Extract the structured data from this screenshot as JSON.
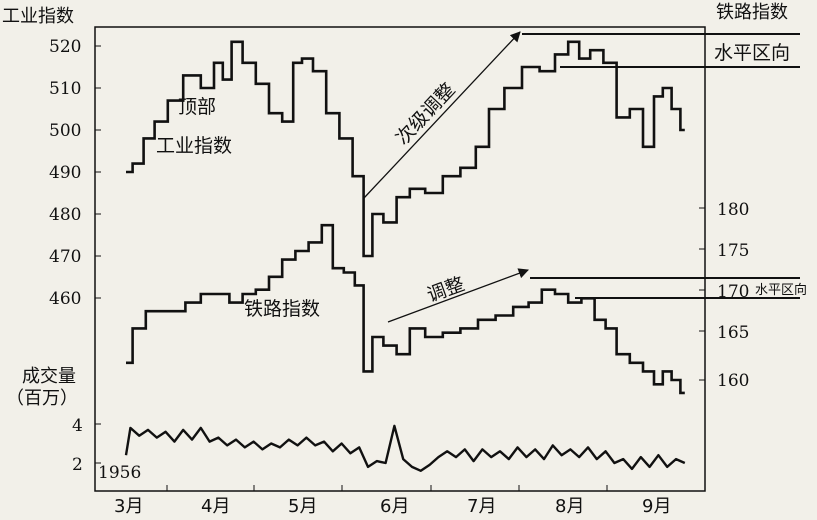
{
  "chart_data": {
    "type": "line",
    "left_axis_title": "工业指数",
    "right_axis_title": "铁路指数",
    "volume_title_line1": "成交量",
    "volume_title_line2": "（百万）",
    "year_label": "1956",
    "x_ticks": [
      "3月",
      "4月",
      "5月",
      "6月",
      "7月",
      "8月",
      "9月"
    ],
    "left_ticks": [
      "520",
      "510",
      "500",
      "490",
      "480",
      "470",
      "460"
    ],
    "right_ticks": [
      "180",
      "175",
      "170",
      "165",
      "160"
    ],
    "volume_ticks": [
      "4",
      "2"
    ],
    "left_ylim": [
      460,
      520
    ],
    "right_ylim": [
      160,
      180
    ],
    "volume_ylim": [
      2,
      4
    ],
    "annotations": {
      "top": "顶部",
      "industrial_label": "工业指数",
      "rail_label": "铁路指数",
      "secondary": "次级调整",
      "correction": "调整",
      "horizontal_upper": "水平区向",
      "horizontal_lower": "水平区向"
    },
    "series": [
      {
        "name": "工业指数",
        "axis": "left",
        "x": [
          "3月",
          "4月",
          "5月",
          "6月",
          "7月",
          "8月",
          "9月"
        ],
        "values": [
          [
            0.0,
            490
          ],
          [
            0.15,
            492
          ],
          [
            0.25,
            498
          ],
          [
            0.4,
            502
          ],
          [
            0.55,
            507
          ],
          [
            0.75,
            513
          ],
          [
            0.95,
            510
          ],
          [
            1.05,
            516
          ],
          [
            1.15,
            512
          ],
          [
            1.25,
            521
          ],
          [
            1.4,
            516
          ],
          [
            1.55,
            511
          ],
          [
            1.7,
            504
          ],
          [
            1.85,
            502
          ],
          [
            1.95,
            516
          ],
          [
            2.05,
            517
          ],
          [
            2.2,
            514
          ],
          [
            2.35,
            504
          ],
          [
            2.5,
            498
          ],
          [
            2.65,
            489
          ],
          [
            2.75,
            470
          ],
          [
            2.85,
            480
          ],
          [
            3.0,
            478
          ],
          [
            3.15,
            484
          ],
          [
            3.3,
            486
          ],
          [
            3.5,
            485
          ],
          [
            3.7,
            489
          ],
          [
            3.9,
            491
          ],
          [
            4.05,
            496
          ],
          [
            4.2,
            505
          ],
          [
            4.4,
            510
          ],
          [
            4.6,
            515
          ],
          [
            4.8,
            514
          ],
          [
            4.95,
            518
          ],
          [
            5.1,
            521
          ],
          [
            5.2,
            517
          ],
          [
            5.35,
            519
          ],
          [
            5.5,
            516
          ],
          [
            5.65,
            503
          ],
          [
            5.8,
            505
          ],
          [
            5.95,
            496
          ],
          [
            6.05,
            508
          ],
          [
            6.15,
            510
          ],
          [
            6.25,
            505
          ],
          [
            6.35,
            500
          ]
        ]
      },
      {
        "name": "铁路指数",
        "axis": "right",
        "x": [
          "3月",
          "4月",
          "5月",
          "6月",
          "7月",
          "8月",
          "9月"
        ],
        "values": [
          [
            0.0,
            162
          ],
          [
            0.15,
            166
          ],
          [
            0.3,
            168
          ],
          [
            0.45,
            168
          ],
          [
            0.6,
            168
          ],
          [
            0.75,
            169
          ],
          [
            0.95,
            170
          ],
          [
            1.1,
            170
          ],
          [
            1.25,
            169
          ],
          [
            1.4,
            170
          ],
          [
            1.55,
            170.5
          ],
          [
            1.7,
            172
          ],
          [
            1.85,
            174
          ],
          [
            2.0,
            175
          ],
          [
            2.15,
            176
          ],
          [
            2.3,
            178
          ],
          [
            2.4,
            173
          ],
          [
            2.55,
            172.5
          ],
          [
            2.65,
            171
          ],
          [
            2.75,
            161
          ],
          [
            2.85,
            165
          ],
          [
            3.0,
            164
          ],
          [
            3.15,
            163
          ],
          [
            3.3,
            166
          ],
          [
            3.5,
            165
          ],
          [
            3.7,
            165.5
          ],
          [
            3.9,
            166
          ],
          [
            4.1,
            167
          ],
          [
            4.3,
            167.5
          ],
          [
            4.5,
            168.5
          ],
          [
            4.65,
            169
          ],
          [
            4.8,
            170.5
          ],
          [
            4.95,
            170
          ],
          [
            5.1,
            169
          ],
          [
            5.25,
            169.5
          ],
          [
            5.4,
            167
          ],
          [
            5.5,
            166
          ],
          [
            5.65,
            163
          ],
          [
            5.8,
            162
          ],
          [
            5.95,
            161
          ],
          [
            6.05,
            159.5
          ],
          [
            6.15,
            161
          ],
          [
            6.25,
            160
          ],
          [
            6.35,
            158.5
          ]
        ]
      },
      {
        "name": "成交量",
        "axis": "volume",
        "x": [
          "3月",
          "4月",
          "5月",
          "6月",
          "7月",
          "8月",
          "9月"
        ],
        "values": [
          [
            0.0,
            2.4
          ],
          [
            0.05,
            3.8
          ],
          [
            0.15,
            3.4
          ],
          [
            0.25,
            3.7
          ],
          [
            0.35,
            3.3
          ],
          [
            0.45,
            3.6
          ],
          [
            0.55,
            3.1
          ],
          [
            0.65,
            3.7
          ],
          [
            0.75,
            3.2
          ],
          [
            0.85,
            3.8
          ],
          [
            0.95,
            3.1
          ],
          [
            1.05,
            3.3
          ],
          [
            1.15,
            2.9
          ],
          [
            1.25,
            3.2
          ],
          [
            1.35,
            2.8
          ],
          [
            1.45,
            3.1
          ],
          [
            1.55,
            2.7
          ],
          [
            1.65,
            3.0
          ],
          [
            1.75,
            2.8
          ],
          [
            1.85,
            3.2
          ],
          [
            1.95,
            2.9
          ],
          [
            2.05,
            3.3
          ],
          [
            2.15,
            2.9
          ],
          [
            2.25,
            3.1
          ],
          [
            2.35,
            2.6
          ],
          [
            2.45,
            3.0
          ],
          [
            2.55,
            2.5
          ],
          [
            2.65,
            2.8
          ],
          [
            2.75,
            1.8
          ],
          [
            2.85,
            2.1
          ],
          [
            2.95,
            2.0
          ],
          [
            3.05,
            3.9
          ],
          [
            3.15,
            2.2
          ],
          [
            3.25,
            1.8
          ],
          [
            3.35,
            1.6
          ],
          [
            3.45,
            1.9
          ],
          [
            3.55,
            2.3
          ],
          [
            3.65,
            2.6
          ],
          [
            3.75,
            2.3
          ],
          [
            3.85,
            2.7
          ],
          [
            3.95,
            2.1
          ],
          [
            4.05,
            2.7
          ],
          [
            4.15,
            2.3
          ],
          [
            4.25,
            2.6
          ],
          [
            4.35,
            2.2
          ],
          [
            4.45,
            2.8
          ],
          [
            4.55,
            2.3
          ],
          [
            4.65,
            2.7
          ],
          [
            4.75,
            2.2
          ],
          [
            4.85,
            2.9
          ],
          [
            4.95,
            2.4
          ],
          [
            5.05,
            2.7
          ],
          [
            5.15,
            2.3
          ],
          [
            5.25,
            2.8
          ],
          [
            5.35,
            2.2
          ],
          [
            5.45,
            2.6
          ],
          [
            5.55,
            2.0
          ],
          [
            5.65,
            2.2
          ],
          [
            5.75,
            1.7
          ],
          [
            5.85,
            2.3
          ],
          [
            5.95,
            1.8
          ],
          [
            6.05,
            2.4
          ],
          [
            6.15,
            1.8
          ],
          [
            6.25,
            2.2
          ],
          [
            6.35,
            2.0
          ]
        ]
      }
    ],
    "grid": false,
    "colors": {
      "background": "#f2f0e9",
      "ink": "#111111"
    }
  }
}
